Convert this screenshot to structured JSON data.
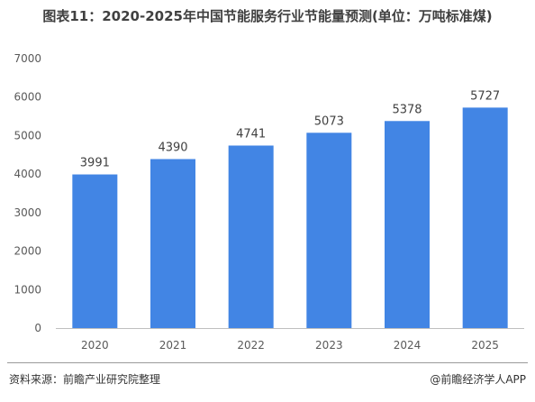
{
  "title": "图表11：2020-2025年中国节能服务行业节能量预测(单位：万吨标准煤)",
  "source": "资料来源：前瞻产业研究院整理",
  "credit": "@前瞻经济学人APP",
  "colors": {
    "bar": "#4285e4",
    "axis": "#bfbfbf",
    "text": "#404040"
  },
  "chart_data": {
    "type": "bar",
    "title": "图表11：2020-2025年中国节能服务行业节能量预测(单位：万吨标准煤)",
    "categories": [
      "2020",
      "2021",
      "2022",
      "2023",
      "2024",
      "2025"
    ],
    "values": [
      3991,
      4390,
      4741,
      5073,
      5378,
      5727
    ],
    "ylim": [
      0,
      7000
    ],
    "yticks": [
      0,
      1000,
      2000,
      3000,
      4000,
      5000,
      6000,
      7000
    ],
    "xlabel": "",
    "ylabel": "",
    "grid": false,
    "legend": "none",
    "data_labels": true
  }
}
